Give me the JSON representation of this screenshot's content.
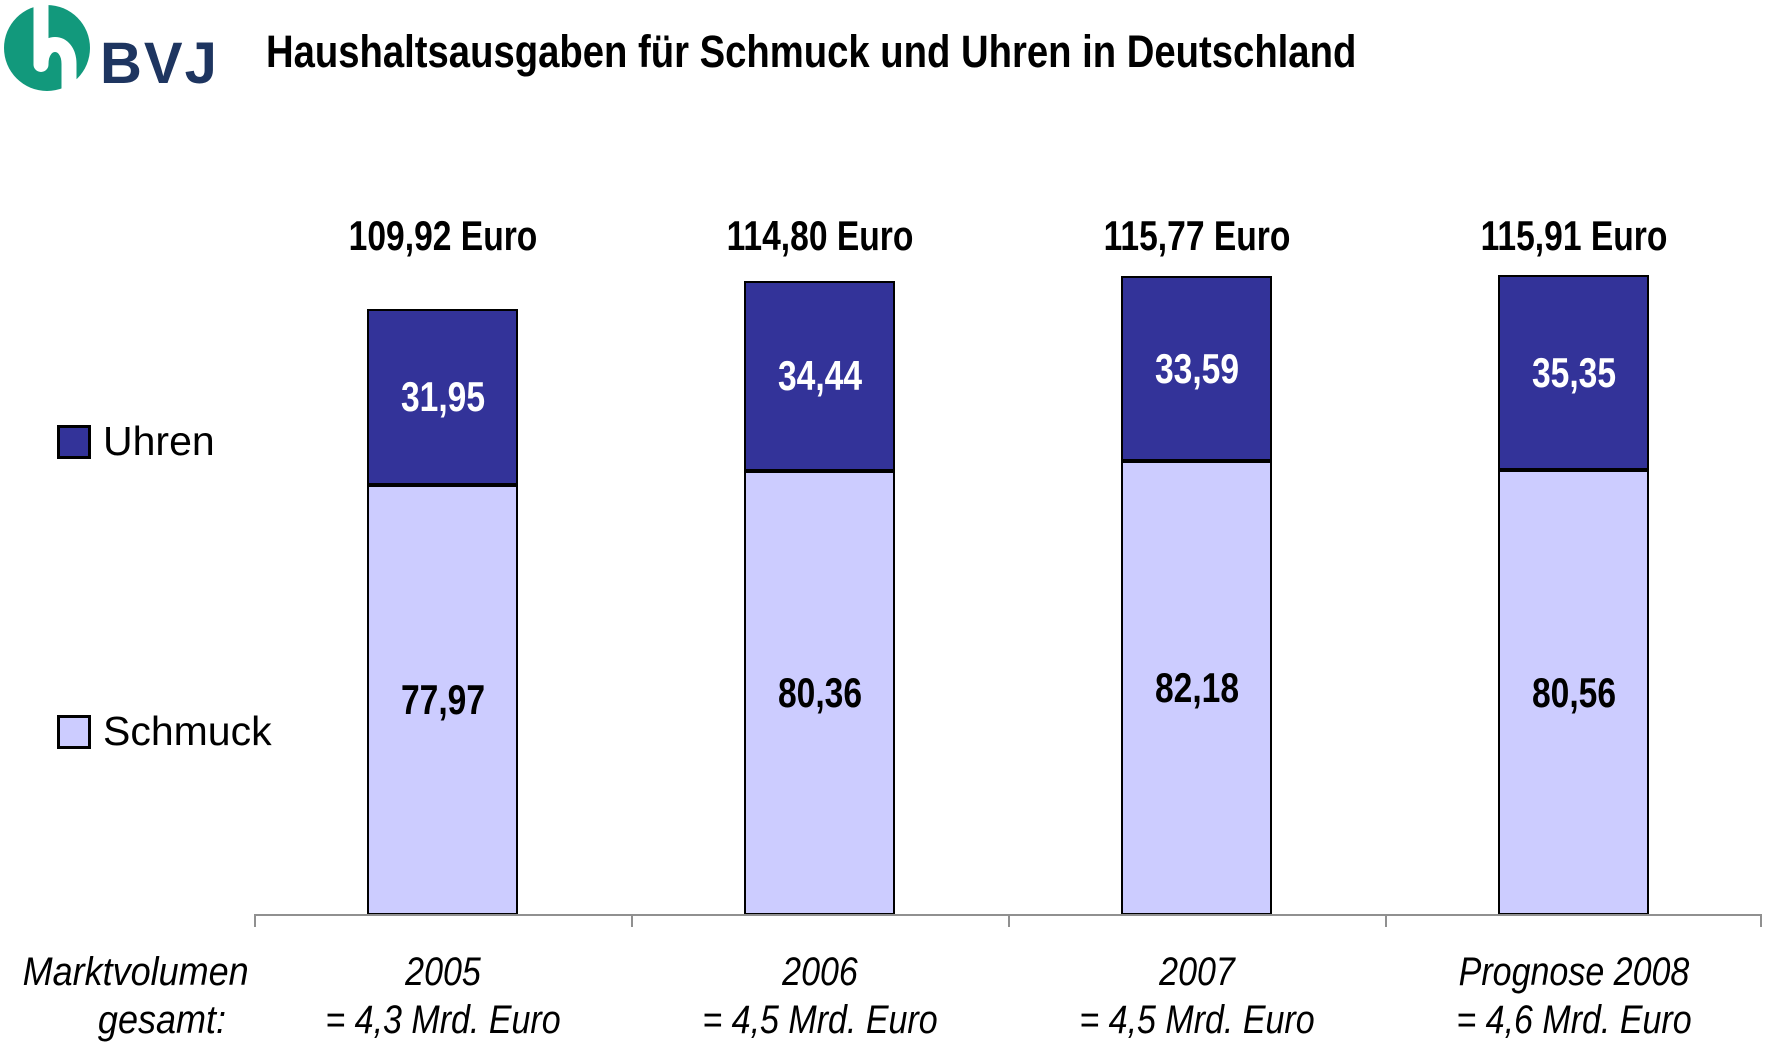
{
  "header": {
    "logo_text": "BVJ",
    "title": "Haushaltsausgaben für Schmuck und Uhren in Deutschland"
  },
  "legend": {
    "items": [
      {
        "label": "Uhren",
        "color": "#333399"
      },
      {
        "label": "Schmuck",
        "color": "#CCCCFF"
      }
    ]
  },
  "footer": {
    "line1": "Marktvolumen",
    "line2": "gesamt:"
  },
  "colors": {
    "uhren": "#333399",
    "schmuck": "#CCCCFF",
    "logo_green": "#12997C",
    "logo_navy": "#1E3560",
    "axis": "#909090",
    "uhren_label": "#FFFFFF",
    "schmuck_label": "#000000"
  },
  "chart_data": {
    "type": "bar",
    "stacked": true,
    "title": "Haushaltsausgaben für Schmuck und Uhren in Deutschland",
    "categories": [
      "2005",
      "2006",
      "2007",
      "Prognose 2008"
    ],
    "category_sublabels": [
      "= 4,3 Mrd. Euro",
      "= 4,5 Mrd. Euro",
      "= 4,5 Mrd. Euro",
      "= 4,6 Mrd. Euro"
    ],
    "series": [
      {
        "name": "Schmuck",
        "color": "#CCCCFF",
        "label_color": "#000000",
        "values": [
          77.97,
          80.36,
          82.18,
          80.56
        ],
        "value_labels": [
          "77,97",
          "80,36",
          "82,18",
          "80,56"
        ]
      },
      {
        "name": "Uhren",
        "color": "#333399",
        "label_color": "#FFFFFF",
        "values": [
          31.95,
          34.44,
          33.59,
          35.35
        ],
        "value_labels": [
          "31,95",
          "34,44",
          "33,59",
          "35,35"
        ]
      }
    ],
    "totals": [
      "109,92 Euro",
      "114,80 Euro",
      "115,77 Euro",
      "115,91 Euro"
    ],
    "totals_values": [
      109.92,
      114.8,
      115.77,
      115.91
    ],
    "unit": "Euro",
    "ylabel": "",
    "xlabel": "",
    "ylim": [
      0,
      120
    ],
    "grid": false,
    "legend_position": "left",
    "footer_note": "Marktvolumen gesamt: 2005 = 4,3 Mrd. Euro; 2006 = 4,5 Mrd. Euro; 2007 = 4,5 Mrd. Euro; Prognose 2008 = 4,6 Mrd. Euro"
  }
}
